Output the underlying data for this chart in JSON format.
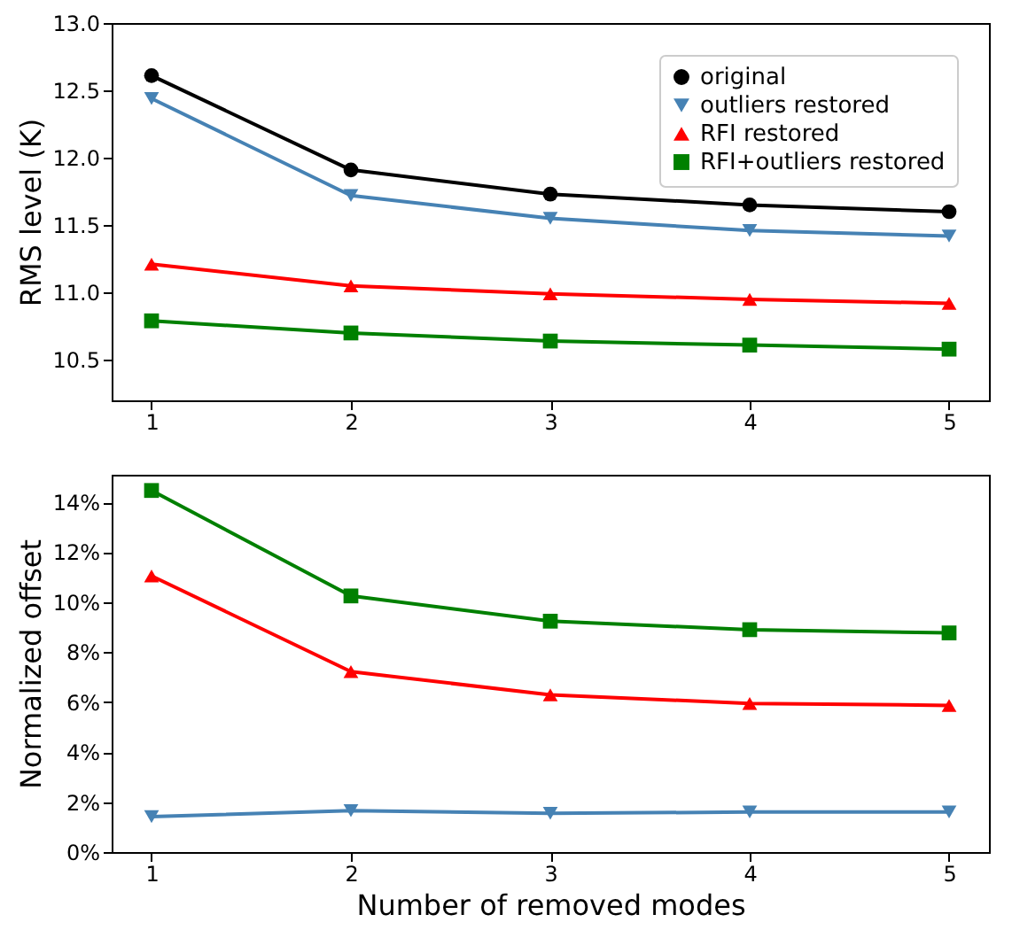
{
  "chart_data": [
    {
      "type": "line",
      "ylabel": "RMS level (K)",
      "x": [
        1,
        2,
        3,
        4,
        5
      ],
      "xlim": [
        0.8,
        5.2
      ],
      "xticks": [
        1,
        2,
        3,
        4,
        5
      ],
      "ylim": [
        10.2,
        13.0
      ],
      "yticks": [
        10.5,
        {
          "value": 11,
          "label": "11.0"
        },
        11.5,
        {
          "value": 12,
          "label": "12.0"
        },
        12.5,
        {
          "value": 13,
          "label": "13.0"
        }
      ],
      "grid": false,
      "legend": "top right",
      "line_style": "solid",
      "series": [
        {
          "name": "original",
          "color": "#000000",
          "marker": "circle",
          "values": [
            12.61,
            11.91,
            11.73,
            11.65,
            11.6
          ]
        },
        {
          "name": "outliers restored",
          "color": "#4682b4",
          "marker": "triangle-down",
          "values": [
            12.44,
            11.72,
            11.55,
            11.46,
            11.42
          ]
        },
        {
          "name": "RFI restored",
          "color": "#ff0000",
          "marker": "triangle",
          "values": [
            11.21,
            11.05,
            10.99,
            10.95,
            10.92
          ]
        },
        {
          "name": "RFI+outliers restored",
          "color": "#008000",
          "marker": "square",
          "values": [
            10.79,
            10.7,
            10.64,
            10.61,
            10.58
          ]
        }
      ]
    },
    {
      "type": "line",
      "xlabel": "Number of removed modes",
      "ylabel": "Normalized offset",
      "x": [
        1,
        2,
        3,
        4,
        5
      ],
      "xlim": [
        0.8,
        5.2
      ],
      "xticks": [
        1,
        2,
        3,
        4,
        5
      ],
      "ylim": [
        0,
        15.1
      ],
      "yticks": [
        {
          "value": 0,
          "label": "0%"
        },
        {
          "value": 2,
          "label": "2%"
        },
        {
          "value": 4,
          "label": "4%"
        },
        {
          "value": 6,
          "label": "6%"
        },
        {
          "value": 8,
          "label": "8%"
        },
        {
          "value": 10,
          "label": "10%"
        },
        {
          "value": 12,
          "label": "12%"
        },
        {
          "value": 14,
          "label": "14%"
        }
      ],
      "grid": false,
      "legend": false,
      "line_style": "solid",
      "series": [
        {
          "color": "#4682b4",
          "marker": "triangle-down",
          "values": [
            1.42,
            1.66,
            1.55,
            1.6,
            1.6
          ]
        },
        {
          "color": "#ff0000",
          "marker": "triangle",
          "values": [
            11.05,
            7.22,
            6.29,
            5.95,
            5.87
          ]
        },
        {
          "color": "#008000",
          "marker": "square",
          "values": [
            14.47,
            10.25,
            9.24,
            8.9,
            8.77
          ]
        }
      ]
    }
  ]
}
